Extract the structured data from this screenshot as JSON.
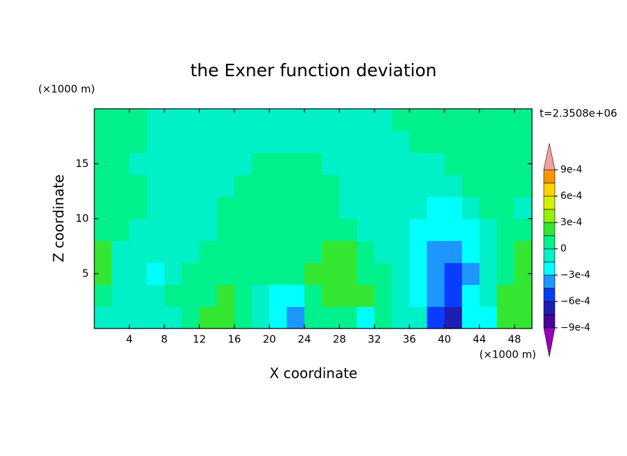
{
  "chart_data": {
    "type": "filled-contour",
    "title": "the Exner function deviation",
    "x_label": "X coordinate",
    "y_label": "Z coordinate",
    "x_unit": "(×1000 m)",
    "y_unit": "(×1000 m)",
    "annotation": "t=2.3508e+06",
    "xlim": [
      0,
      50
    ],
    "ylim": [
      0,
      20
    ],
    "xticks": [
      4,
      8,
      12,
      16,
      20,
      24,
      28,
      32,
      36,
      40,
      44,
      48
    ],
    "yticks": [
      5,
      10,
      15
    ],
    "x": [
      1,
      3,
      5,
      7,
      9,
      11,
      13,
      15,
      17,
      19,
      21,
      23,
      25,
      27,
      29,
      31,
      33,
      35,
      37,
      39,
      41,
      43,
      45,
      47,
      49
    ],
    "y": [
      1,
      3,
      5,
      7,
      9,
      11,
      13,
      15,
      17,
      19
    ],
    "z": [
      [
        -7e-05,
        -7e-05,
        -7e-05,
        -7e-05,
        -7e-05,
        7e-05,
        0.0002,
        0.0002,
        7e-05,
        -7e-05,
        -0.0002,
        -0.00035,
        7e-05,
        7e-05,
        7e-05,
        -0.0002,
        7e-05,
        -7e-05,
        -7e-05,
        -0.0005,
        -0.0007,
        -0.0002,
        -0.0002,
        0.0002,
        0.0002
      ],
      [
        7e-05,
        -7e-05,
        -7e-05,
        -7e-05,
        7e-05,
        7e-05,
        7e-05,
        0.0002,
        7e-05,
        -7e-05,
        -0.0002,
        -0.0002,
        7e-05,
        0.0002,
        0.0002,
        0.0002,
        7e-05,
        -7e-05,
        -0.0002,
        -0.00035,
        -0.0005,
        -0.0002,
        -7e-05,
        0.0002,
        0.0002
      ],
      [
        0.0002,
        -7e-05,
        -7e-05,
        -0.0002,
        -7e-05,
        7e-05,
        7e-05,
        7e-05,
        7e-05,
        7e-05,
        7e-05,
        7e-05,
        0.0002,
        0.0002,
        0.0002,
        7e-05,
        7e-05,
        -7e-05,
        -0.0002,
        -0.00035,
        -0.0005,
        -0.00035,
        -7e-05,
        7e-05,
        0.0002
      ],
      [
        0.0002,
        -7e-05,
        -7e-05,
        -7e-05,
        -7e-05,
        -7e-05,
        7e-05,
        7e-05,
        7e-05,
        7e-05,
        7e-05,
        7e-05,
        7e-05,
        0.0002,
        0.0002,
        7e-05,
        -7e-05,
        -7e-05,
        -0.0002,
        -0.00035,
        -0.00035,
        -0.0002,
        -7e-05,
        7e-05,
        0.0002
      ],
      [
        7e-05,
        7e-05,
        -7e-05,
        -7e-05,
        -7e-05,
        -7e-05,
        -7e-05,
        7e-05,
        7e-05,
        7e-05,
        7e-05,
        7e-05,
        7e-05,
        7e-05,
        7e-05,
        -7e-05,
        -7e-05,
        -7e-05,
        -0.0002,
        -0.0002,
        -0.0002,
        -0.0002,
        -7e-05,
        7e-05,
        7e-05
      ],
      [
        7e-05,
        7e-05,
        7e-05,
        -7e-05,
        -7e-05,
        -7e-05,
        -7e-05,
        7e-05,
        7e-05,
        7e-05,
        7e-05,
        7e-05,
        7e-05,
        7e-05,
        -7e-05,
        -7e-05,
        -7e-05,
        -7e-05,
        -7e-05,
        -0.0002,
        -0.0002,
        -7e-05,
        7e-05,
        7e-05,
        -7e-05
      ],
      [
        7e-05,
        7e-05,
        7e-05,
        -7e-05,
        -7e-05,
        -7e-05,
        -7e-05,
        -7e-05,
        7e-05,
        7e-05,
        7e-05,
        7e-05,
        7e-05,
        7e-05,
        -7e-05,
        -7e-05,
        -7e-05,
        -7e-05,
        -7e-05,
        -7e-05,
        -7e-05,
        7e-05,
        7e-05,
        7e-05,
        7e-05
      ],
      [
        7e-05,
        7e-05,
        -7e-05,
        -7e-05,
        -7e-05,
        -7e-05,
        -7e-05,
        -7e-05,
        -7e-05,
        7e-05,
        7e-05,
        7e-05,
        7e-05,
        -7e-05,
        -7e-05,
        -7e-05,
        -7e-05,
        -7e-05,
        -7e-05,
        -7e-05,
        7e-05,
        7e-05,
        7e-05,
        7e-05,
        7e-05
      ],
      [
        7e-05,
        7e-05,
        7e-05,
        -7e-05,
        -7e-05,
        -7e-05,
        -7e-05,
        -7e-05,
        -7e-05,
        -7e-05,
        -7e-05,
        -7e-05,
        -7e-05,
        -7e-05,
        -7e-05,
        -7e-05,
        -7e-05,
        -7e-05,
        7e-05,
        7e-05,
        7e-05,
        7e-05,
        7e-05,
        7e-05,
        7e-05
      ],
      [
        7e-05,
        7e-05,
        7e-05,
        -7e-05,
        -7e-05,
        -7e-05,
        -7e-05,
        -7e-05,
        -7e-05,
        -7e-05,
        -7e-05,
        -7e-05,
        -7e-05,
        -7e-05,
        -7e-05,
        -7e-05,
        -7e-05,
        7e-05,
        7e-05,
        7e-05,
        7e-05,
        7e-05,
        7e-05,
        7e-05,
        7e-05
      ]
    ],
    "levels": [
      -0.0009,
      -0.00075,
      -0.0006,
      -0.00045,
      -0.0003,
      -0.00015,
      0,
      0.00015,
      0.0003,
      0.00045,
      0.0006,
      0.00075,
      0.0009
    ],
    "colors": [
      "#9a00bb",
      "#4b0096",
      "#1e1eb4",
      "#0a3cff",
      "#1e96ff",
      "#00ffff",
      "#00f0c8",
      "#00f08c",
      "#32e632",
      "#96f000",
      "#d2f000",
      "#ffd200",
      "#ff9600",
      "#ff2020",
      "#f4a0a0"
    ],
    "colorbar_ticks": [
      {
        "value": 0.0009,
        "label": "9e-4"
      },
      {
        "value": 0.0006,
        "label": "6e-4"
      },
      {
        "value": 0.0003,
        "label": "3e-4"
      },
      0,
      {
        "value": -0.0003,
        "label": "−3e-4"
      },
      {
        "value": -0.0006,
        "label": "−6e-4"
      },
      {
        "value": -0.0009,
        "label": "−9e-4"
      }
    ]
  }
}
